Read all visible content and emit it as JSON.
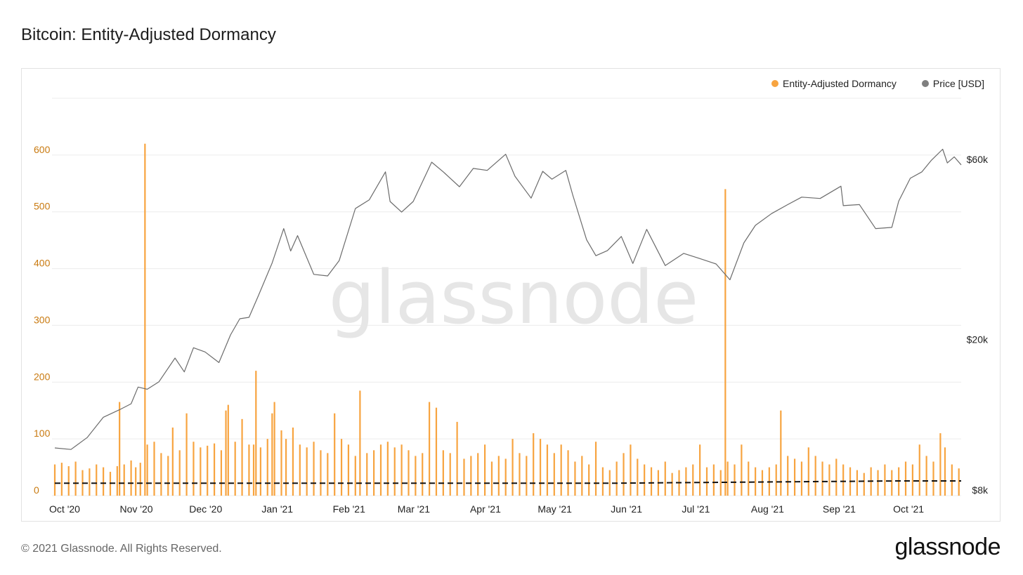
{
  "header": {
    "title": "Bitcoin: Entity-Adjusted Dormancy"
  },
  "legend": [
    {
      "label": "Entity-Adjusted Dormancy",
      "color": "#f7a440"
    },
    {
      "label": "Price [USD]",
      "color": "#7f7f7f"
    }
  ],
  "watermark": "glassnode",
  "footer": {
    "copyright": "© 2021 Glassnode. All Rights Reserved.",
    "logo": "glassnode"
  },
  "chart_data": {
    "type": "bar",
    "title": "Bitcoin: Entity-Adjusted Dormancy",
    "x_range": [
      "2020-10-01",
      "2021-10-28"
    ],
    "x_ticks": [
      {
        "label": "Oct '20",
        "date": "2020-10-01"
      },
      {
        "label": "Nov '20",
        "date": "2020-11-01"
      },
      {
        "label": "Dec '20",
        "date": "2020-12-01"
      },
      {
        "label": "Jan '21",
        "date": "2021-01-01"
      },
      {
        "label": "Feb '21",
        "date": "2021-02-01"
      },
      {
        "label": "Mar '21",
        "date": "2021-03-01"
      },
      {
        "label": "Apr '21",
        "date": "2021-04-01"
      },
      {
        "label": "May '21",
        "date": "2021-05-01"
      },
      {
        "label": "Jun '21",
        "date": "2021-06-01"
      },
      {
        "label": "Jul '21",
        "date": "2021-07-01"
      },
      {
        "label": "Aug '21",
        "date": "2021-08-01"
      },
      {
        "label": "Sep '21",
        "date": "2021-09-01"
      },
      {
        "label": "Oct '21",
        "date": "2021-10-01"
      }
    ],
    "y_left": {
      "range": [
        0,
        700
      ],
      "ticks": [
        0,
        100,
        200,
        300,
        400,
        500,
        600
      ],
      "color": "#c97a10"
    },
    "y_right": {
      "scale": "log",
      "range": [
        8000,
        90000
      ],
      "ticks": [
        {
          "label": "$8k",
          "value": 8000
        },
        {
          "label": "$20k",
          "value": 20000
        },
        {
          "label": "$60k",
          "value": 60000
        }
      ]
    },
    "grid": true,
    "legend_position": "top-right",
    "series": [
      {
        "name": "Entity-Adjusted Dormancy",
        "type": "bar",
        "color": "#f7a440",
        "points": [
          [
            "2020-10-01",
            55
          ],
          [
            "2020-10-04",
            58
          ],
          [
            "2020-10-07",
            52
          ],
          [
            "2020-10-10",
            60
          ],
          [
            "2020-10-13",
            45
          ],
          [
            "2020-10-16",
            48
          ],
          [
            "2020-10-19",
            55
          ],
          [
            "2020-10-22",
            50
          ],
          [
            "2020-10-25",
            42
          ],
          [
            "2020-10-28",
            52
          ],
          [
            "2020-10-29",
            165
          ],
          [
            "2020-10-31",
            55
          ],
          [
            "2020-11-03",
            62
          ],
          [
            "2020-11-05",
            50
          ],
          [
            "2020-11-07",
            58
          ],
          [
            "2020-11-09",
            620
          ],
          [
            "2020-11-10",
            90
          ],
          [
            "2020-11-13",
            95
          ],
          [
            "2020-11-16",
            75
          ],
          [
            "2020-11-19",
            70
          ],
          [
            "2020-11-21",
            120
          ],
          [
            "2020-11-24",
            80
          ],
          [
            "2020-11-27",
            145
          ],
          [
            "2020-11-30",
            95
          ],
          [
            "2020-12-03",
            85
          ],
          [
            "2020-12-06",
            88
          ],
          [
            "2020-12-09",
            92
          ],
          [
            "2020-12-12",
            80
          ],
          [
            "2020-12-14",
            150
          ],
          [
            "2020-12-15",
            160
          ],
          [
            "2020-12-18",
            95
          ],
          [
            "2020-12-21",
            135
          ],
          [
            "2020-12-24",
            90
          ],
          [
            "2020-12-26",
            90
          ],
          [
            "2020-12-27",
            220
          ],
          [
            "2020-12-29",
            85
          ],
          [
            "2021-01-01",
            100
          ],
          [
            "2021-01-03",
            145
          ],
          [
            "2021-01-04",
            165
          ],
          [
            "2021-01-07",
            115
          ],
          [
            "2021-01-09",
            100
          ],
          [
            "2021-01-12",
            120
          ],
          [
            "2021-01-15",
            90
          ],
          [
            "2021-01-18",
            85
          ],
          [
            "2021-01-21",
            95
          ],
          [
            "2021-01-24",
            80
          ],
          [
            "2021-01-27",
            75
          ],
          [
            "2021-01-30",
            145
          ],
          [
            "2021-02-02",
            100
          ],
          [
            "2021-02-05",
            90
          ],
          [
            "2021-02-08",
            70
          ],
          [
            "2021-02-10",
            185
          ],
          [
            "2021-02-13",
            75
          ],
          [
            "2021-02-16",
            80
          ],
          [
            "2021-02-19",
            90
          ],
          [
            "2021-02-22",
            95
          ],
          [
            "2021-02-25",
            85
          ],
          [
            "2021-02-28",
            90
          ],
          [
            "2021-03-03",
            80
          ],
          [
            "2021-03-06",
            70
          ],
          [
            "2021-03-09",
            75
          ],
          [
            "2021-03-12",
            165
          ],
          [
            "2021-03-15",
            155
          ],
          [
            "2021-03-18",
            80
          ],
          [
            "2021-03-21",
            75
          ],
          [
            "2021-03-24",
            130
          ],
          [
            "2021-03-27",
            65
          ],
          [
            "2021-03-30",
            70
          ],
          [
            "2021-04-02",
            75
          ],
          [
            "2021-04-05",
            90
          ],
          [
            "2021-04-08",
            60
          ],
          [
            "2021-04-11",
            70
          ],
          [
            "2021-04-14",
            65
          ],
          [
            "2021-04-17",
            100
          ],
          [
            "2021-04-20",
            75
          ],
          [
            "2021-04-23",
            70
          ],
          [
            "2021-04-26",
            110
          ],
          [
            "2021-04-29",
            100
          ],
          [
            "2021-05-02",
            90
          ],
          [
            "2021-05-05",
            75
          ],
          [
            "2021-05-08",
            90
          ],
          [
            "2021-05-11",
            80
          ],
          [
            "2021-05-14",
            60
          ],
          [
            "2021-05-17",
            70
          ],
          [
            "2021-05-20",
            55
          ],
          [
            "2021-05-23",
            95
          ],
          [
            "2021-05-26",
            50
          ],
          [
            "2021-05-29",
            45
          ],
          [
            "2021-06-01",
            60
          ],
          [
            "2021-06-04",
            75
          ],
          [
            "2021-06-07",
            90
          ],
          [
            "2021-06-10",
            65
          ],
          [
            "2021-06-13",
            55
          ],
          [
            "2021-06-16",
            50
          ],
          [
            "2021-06-19",
            45
          ],
          [
            "2021-06-22",
            60
          ],
          [
            "2021-06-25",
            40
          ],
          [
            "2021-06-28",
            45
          ],
          [
            "2021-07-01",
            50
          ],
          [
            "2021-07-04",
            55
          ],
          [
            "2021-07-07",
            90
          ],
          [
            "2021-07-10",
            50
          ],
          [
            "2021-07-13",
            55
          ],
          [
            "2021-07-16",
            45
          ],
          [
            "2021-07-18",
            540
          ],
          [
            "2021-07-19",
            60
          ],
          [
            "2021-07-22",
            55
          ],
          [
            "2021-07-25",
            90
          ],
          [
            "2021-07-28",
            60
          ],
          [
            "2021-07-31",
            50
          ],
          [
            "2021-08-03",
            45
          ],
          [
            "2021-08-06",
            50
          ],
          [
            "2021-08-09",
            55
          ],
          [
            "2021-08-11",
            150
          ],
          [
            "2021-08-14",
            70
          ],
          [
            "2021-08-17",
            65
          ],
          [
            "2021-08-20",
            60
          ],
          [
            "2021-08-23",
            85
          ],
          [
            "2021-08-26",
            70
          ],
          [
            "2021-08-29",
            60
          ],
          [
            "2021-09-01",
            55
          ],
          [
            "2021-09-04",
            65
          ],
          [
            "2021-09-07",
            55
          ],
          [
            "2021-09-10",
            50
          ],
          [
            "2021-09-13",
            45
          ],
          [
            "2021-09-16",
            40
          ],
          [
            "2021-09-19",
            50
          ],
          [
            "2021-09-22",
            45
          ],
          [
            "2021-09-25",
            55
          ],
          [
            "2021-09-28",
            45
          ],
          [
            "2021-10-01",
            50
          ],
          [
            "2021-10-04",
            60
          ],
          [
            "2021-10-07",
            55
          ],
          [
            "2021-10-10",
            90
          ],
          [
            "2021-10-13",
            70
          ],
          [
            "2021-10-16",
            60
          ],
          [
            "2021-10-19",
            110
          ],
          [
            "2021-10-21",
            85
          ],
          [
            "2021-10-24",
            55
          ],
          [
            "2021-10-27",
            48
          ]
        ]
      },
      {
        "name": "Price [USD]",
        "type": "line",
        "axis": "right",
        "color": "#6b6b6b",
        "points": [
          [
            "2020-10-01",
            10700
          ],
          [
            "2020-10-08",
            10600
          ],
          [
            "2020-10-15",
            11400
          ],
          [
            "2020-10-22",
            12900
          ],
          [
            "2020-10-29",
            13500
          ],
          [
            "2020-11-03",
            14000
          ],
          [
            "2020-11-06",
            15500
          ],
          [
            "2020-11-10",
            15300
          ],
          [
            "2020-11-15",
            16000
          ],
          [
            "2020-11-22",
            18500
          ],
          [
            "2020-11-26",
            17000
          ],
          [
            "2020-11-30",
            19700
          ],
          [
            "2020-12-05",
            19200
          ],
          [
            "2020-12-11",
            18000
          ],
          [
            "2020-12-16",
            21300
          ],
          [
            "2020-12-20",
            23500
          ],
          [
            "2020-12-24",
            23700
          ],
          [
            "2020-12-28",
            27000
          ],
          [
            "2021-01-03",
            33000
          ],
          [
            "2021-01-08",
            40700
          ],
          [
            "2021-01-11",
            35500
          ],
          [
            "2021-01-14",
            39000
          ],
          [
            "2021-01-21",
            30800
          ],
          [
            "2021-01-27",
            30500
          ],
          [
            "2021-02-01",
            33500
          ],
          [
            "2021-02-08",
            46000
          ],
          [
            "2021-02-14",
            48500
          ],
          [
            "2021-02-21",
            57500
          ],
          [
            "2021-02-23",
            48000
          ],
          [
            "2021-02-28",
            45000
          ],
          [
            "2021-03-05",
            48000
          ],
          [
            "2021-03-13",
            61000
          ],
          [
            "2021-03-18",
            57500
          ],
          [
            "2021-03-25",
            52500
          ],
          [
            "2021-03-31",
            58700
          ],
          [
            "2021-04-06",
            58000
          ],
          [
            "2021-04-14",
            64000
          ],
          [
            "2021-04-18",
            56000
          ],
          [
            "2021-04-25",
            49000
          ],
          [
            "2021-04-30",
            57700
          ],
          [
            "2021-05-04",
            55000
          ],
          [
            "2021-05-10",
            58000
          ],
          [
            "2021-05-13",
            50000
          ],
          [
            "2021-05-19",
            38000
          ],
          [
            "2021-05-23",
            34500
          ],
          [
            "2021-05-28",
            35600
          ],
          [
            "2021-06-03",
            38800
          ],
          [
            "2021-06-08",
            32900
          ],
          [
            "2021-06-14",
            40500
          ],
          [
            "2021-06-22",
            32500
          ],
          [
            "2021-06-30",
            35000
          ],
          [
            "2021-07-07",
            33900
          ],
          [
            "2021-07-14",
            32800
          ],
          [
            "2021-07-20",
            29800
          ],
          [
            "2021-07-26",
            37300
          ],
          [
            "2021-07-31",
            41500
          ],
          [
            "2021-08-07",
            44600
          ],
          [
            "2021-08-14",
            47100
          ],
          [
            "2021-08-20",
            49300
          ],
          [
            "2021-08-28",
            48900
          ],
          [
            "2021-09-06",
            52700
          ],
          [
            "2021-09-07",
            46800
          ],
          [
            "2021-09-14",
            47100
          ],
          [
            "2021-09-21",
            40700
          ],
          [
            "2021-09-28",
            41000
          ],
          [
            "2021-10-01",
            48100
          ],
          [
            "2021-10-06",
            55300
          ],
          [
            "2021-10-11",
            57500
          ],
          [
            "2021-10-15",
            61600
          ],
          [
            "2021-10-20",
            66000
          ],
          [
            "2021-10-22",
            60700
          ],
          [
            "2021-10-25",
            63000
          ],
          [
            "2021-10-28",
            60000
          ]
        ]
      },
      {
        "name": "",
        "type": "line",
        "style": "dashed",
        "color": "#111111",
        "points": [
          [
            "2020-10-01",
            22
          ],
          [
            "2021-06-01",
            22
          ],
          [
            "2021-07-01",
            23
          ],
          [
            "2021-08-01",
            24
          ],
          [
            "2021-09-01",
            25
          ],
          [
            "2021-10-01",
            26
          ],
          [
            "2021-10-28",
            26
          ]
        ]
      }
    ]
  }
}
